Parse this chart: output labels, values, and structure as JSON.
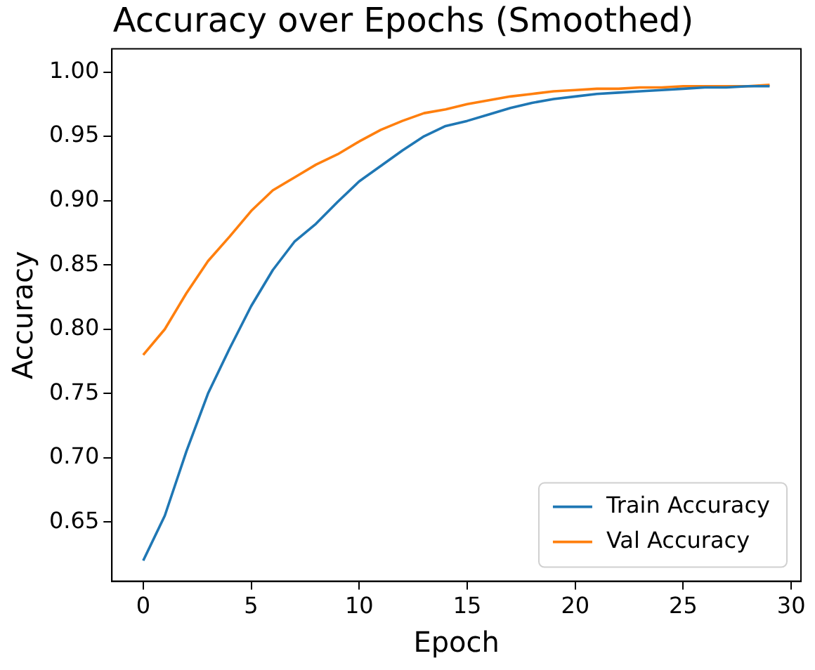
{
  "chart_data": {
    "type": "line",
    "title": "Accuracy over Epochs (Smoothed)",
    "xlabel": "Epoch",
    "ylabel": "Accuracy",
    "x": [
      0,
      1,
      2,
      3,
      4,
      5,
      6,
      7,
      8,
      9,
      10,
      11,
      12,
      13,
      14,
      15,
      16,
      17,
      18,
      19,
      20,
      21,
      22,
      23,
      24,
      25,
      26,
      27,
      28,
      29
    ],
    "series": [
      {
        "name": "Train Accuracy",
        "color": "#1f77b4",
        "values": [
          0.62,
          0.655,
          0.705,
          0.75,
          0.785,
          0.818,
          0.846,
          0.868,
          0.882,
          0.899,
          0.915,
          0.927,
          0.939,
          0.95,
          0.958,
          0.962,
          0.967,
          0.972,
          0.976,
          0.979,
          0.981,
          0.983,
          0.984,
          0.985,
          0.986,
          0.987,
          0.988,
          0.988,
          0.989,
          0.989
        ]
      },
      {
        "name": "Val Accuracy",
        "color": "#ff7f0e",
        "values": [
          0.78,
          0.8,
          0.828,
          0.853,
          0.872,
          0.892,
          0.908,
          0.918,
          0.928,
          0.936,
          0.946,
          0.955,
          0.962,
          0.968,
          0.971,
          0.975,
          0.978,
          0.981,
          0.983,
          0.985,
          0.986,
          0.987,
          0.987,
          0.988,
          0.988,
          0.989,
          0.989,
          0.989,
          0.989,
          0.99
        ]
      }
    ],
    "xlim": [
      -1.45,
      30.45
    ],
    "xticks": [
      0,
      5,
      10,
      15,
      20,
      25,
      30
    ],
    "ylim": [
      0.604,
      1.018
    ],
    "yticks": [
      {
        "value": 0.65,
        "label": "0.65"
      },
      {
        "value": 0.7,
        "label": "0.70"
      },
      {
        "value": 0.75,
        "label": "0.75"
      },
      {
        "value": 0.8,
        "label": "0.80"
      },
      {
        "value": 0.85,
        "label": "0.85"
      },
      {
        "value": 0.9,
        "label": "0.90"
      },
      {
        "value": 0.95,
        "label": "0.95"
      },
      {
        "value": 1,
        "label": "1.00"
      }
    ],
    "grid": false,
    "legend": "bottom right",
    "marker": "none",
    "line_style": "solid"
  }
}
